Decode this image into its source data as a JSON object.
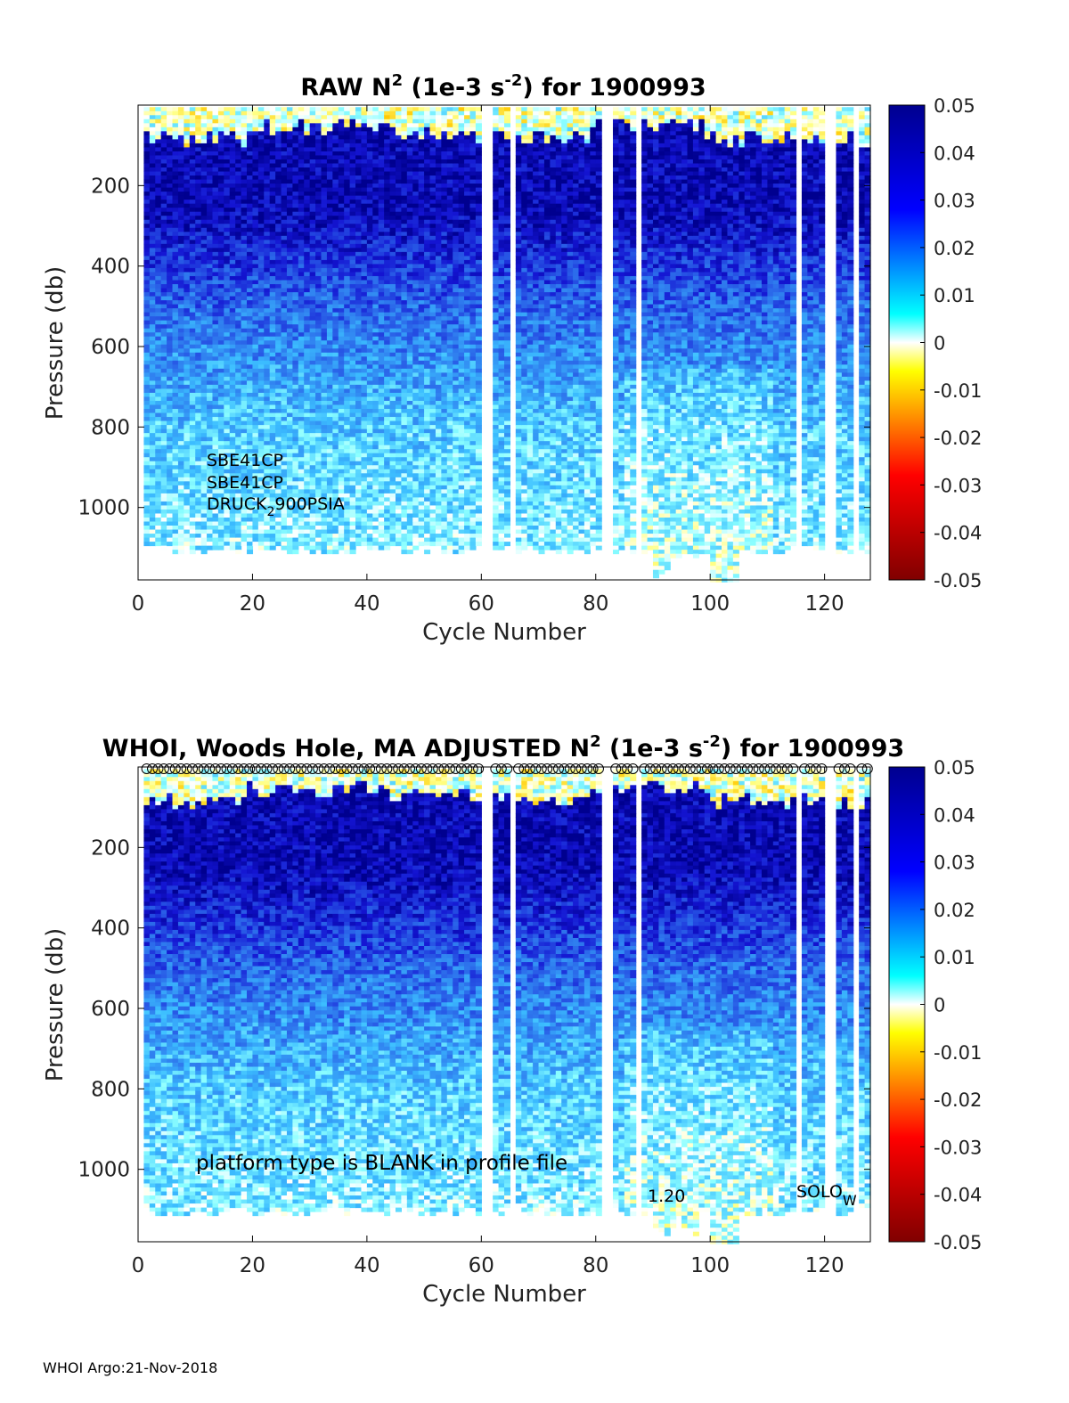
{
  "chart_data": [
    {
      "type": "heatmap",
      "title_parts": [
        "RAW N",
        "2",
        " (1e-3 s",
        "-2",
        ") for 1900993"
      ],
      "xlabel": "Cycle Number",
      "ylabel": "Pressure (db)",
      "xlim": [
        0,
        128
      ],
      "ylim": [
        1180,
        0
      ],
      "xticks": [
        "0",
        "20",
        "40",
        "60",
        "80",
        "100",
        "120"
      ],
      "yticks": [
        "200",
        "400",
        "600",
        "800",
        "1000"
      ],
      "colorbar": {
        "min": -0.05,
        "max": 0.05,
        "ticks": [
          "0.05",
          "0.04",
          "0.03",
          "0.02",
          "0.01",
          "0",
          "-0.01",
          "-0.02",
          "-0.03",
          "-0.04",
          "-0.05"
        ]
      },
      "missing_cycles": [
        1,
        61,
        62,
        66,
        82,
        83,
        88,
        116,
        121,
        122,
        126
      ],
      "annotations": [
        "SBE41CP",
        "SBE41CP",
        "DRUCK",
        "2",
        "900PSIA"
      ]
    },
    {
      "type": "heatmap",
      "title_parts": [
        "WHOI, Woods Hole, MA  ADJUSTED N",
        "2",
        " (1e-3 s",
        "-2",
        ") for 1900993"
      ],
      "xlabel": "Cycle Number",
      "ylabel": "Pressure (db)",
      "xlim": [
        0,
        128
      ],
      "ylim": [
        1180,
        0
      ],
      "xticks": [
        "0",
        "20",
        "40",
        "60",
        "80",
        "100",
        "120"
      ],
      "yticks": [
        "200",
        "400",
        "600",
        "800",
        "1000"
      ],
      "colorbar": {
        "min": -0.05,
        "max": 0.05,
        "ticks": [
          "0.05",
          "0.04",
          "0.03",
          "0.02",
          "0.01",
          "0",
          "-0.01",
          "-0.02",
          "-0.03",
          "-0.04",
          "-0.05"
        ]
      },
      "missing_cycles": [
        1,
        61,
        62,
        66,
        82,
        83,
        88,
        116,
        121,
        122,
        126
      ],
      "annotations": [
        "platform type is BLANK in profile file",
        "1.20",
        "SOLO",
        "W"
      ]
    }
  ],
  "colors": {
    "dark_blue": "#00008f",
    "blue": "#0000ff",
    "cyan": "#00ffff",
    "white": "#ffffff",
    "yellow": "#ffff00",
    "red": "#ff0000",
    "dark_red": "#800000"
  },
  "footer": "WHOI Argo:21-Nov-2018"
}
